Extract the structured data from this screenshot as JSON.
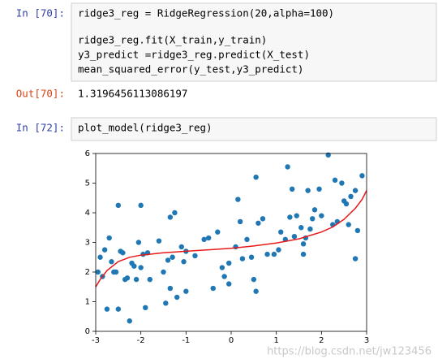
{
  "cells": [
    {
      "prompt": "In [70]:",
      "code": [
        "ridge3_reg = RidgeRegression(20,alpha=100)",
        "ridge3_reg.fit(X_train,y_train)",
        "y3_predict =ridge3_reg.predict(X_test)",
        "mean_squared_error(y_test,y3_predict)"
      ],
      "out_prompt": "Out[70]:",
      "output": "1.3196456113086197"
    },
    {
      "prompt": "In [72]:",
      "code": [
        "plot_model(ridge3_reg)"
      ]
    }
  ],
  "watermark": "https://blog.csdn.net/jw123456",
  "chart_data": {
    "type": "scatter",
    "xlim": [
      -3,
      3
    ],
    "ylim": [
      0,
      6
    ],
    "xticks": [
      -3,
      -2,
      -1,
      0,
      1,
      2,
      3
    ],
    "yticks": [
      0,
      1,
      2,
      3,
      4,
      5,
      6
    ],
    "points": {
      "color": "#1f77b4",
      "x": [
        -2.95,
        -2.9,
        -2.85,
        -2.8,
        -2.75,
        -2.7,
        -2.65,
        -2.6,
        -2.55,
        -2.5,
        -2.5,
        -2.45,
        -2.4,
        -2.35,
        -2.3,
        -2.25,
        -2.2,
        -2.15,
        -2.1,
        -2.05,
        -2.0,
        -2.0,
        -1.95,
        -1.9,
        -1.85,
        -1.8,
        -1.6,
        -1.5,
        -1.45,
        -1.4,
        -1.35,
        -1.35,
        -1.3,
        -1.25,
        -1.2,
        -1.1,
        -1.05,
        -1.0,
        -1.0,
        -0.8,
        -0.6,
        -0.5,
        -0.4,
        -0.3,
        -0.2,
        -0.15,
        -0.05,
        -0.05,
        0.1,
        0.15,
        0.2,
        0.25,
        0.35,
        0.45,
        0.5,
        0.55,
        0.55,
        0.6,
        0.7,
        0.8,
        0.95,
        1.05,
        1.1,
        1.2,
        1.25,
        1.3,
        1.35,
        1.4,
        1.45,
        1.55,
        1.6,
        1.65,
        1.6,
        1.7,
        1.75,
        1.8,
        1.85,
        1.95,
        2.0,
        2.15,
        2.25,
        2.3,
        2.35,
        2.45,
        2.5,
        2.55,
        2.6,
        2.65,
        2.75,
        2.75,
        2.8,
        2.9
      ],
      "values": [
        2.0,
        2.5,
        1.85,
        2.75,
        0.75,
        3.15,
        2.35,
        2.0,
        2.0,
        0.75,
        4.25,
        2.7,
        2.65,
        1.75,
        1.8,
        0.35,
        2.3,
        2.2,
        1.75,
        3.0,
        2.15,
        4.25,
        2.6,
        0.8,
        2.65,
        1.75,
        3.05,
        2.0,
        0.95,
        2.4,
        1.45,
        3.85,
        2.5,
        4.0,
        1.15,
        2.85,
        2.35,
        2.7,
        1.35,
        2.55,
        3.1,
        3.15,
        1.45,
        3.35,
        2.15,
        1.85,
        2.3,
        1.6,
        2.85,
        4.45,
        3.7,
        2.45,
        3.1,
        2.5,
        1.75,
        1.35,
        5.2,
        3.65,
        3.8,
        2.6,
        2.6,
        2.75,
        3.35,
        3.1,
        5.55,
        3.85,
        4.8,
        3.2,
        3.9,
        3.5,
        2.95,
        3.15,
        2.6,
        4.75,
        3.45,
        3.8,
        4.1,
        4.8,
        3.9,
        5.95,
        3.6,
        5.1,
        3.7,
        5.0,
        4.4,
        4.3,
        3.6,
        4.55,
        2.45,
        4.75,
        3.4,
        5.25
      ]
    },
    "fit": {
      "color": "#e8191b",
      "x": [
        -3,
        -2.9,
        -2.75,
        -2.5,
        -2.25,
        -2,
        -1.5,
        -1,
        -0.5,
        0,
        0.5,
        1,
        1.5,
        2,
        2.25,
        2.5,
        2.75,
        2.9,
        3
      ],
      "values": [
        1.5,
        1.75,
        2.05,
        2.35,
        2.5,
        2.57,
        2.65,
        2.7,
        2.75,
        2.8,
        2.88,
        2.98,
        3.12,
        3.35,
        3.52,
        3.78,
        4.15,
        4.45,
        4.75
      ]
    }
  }
}
